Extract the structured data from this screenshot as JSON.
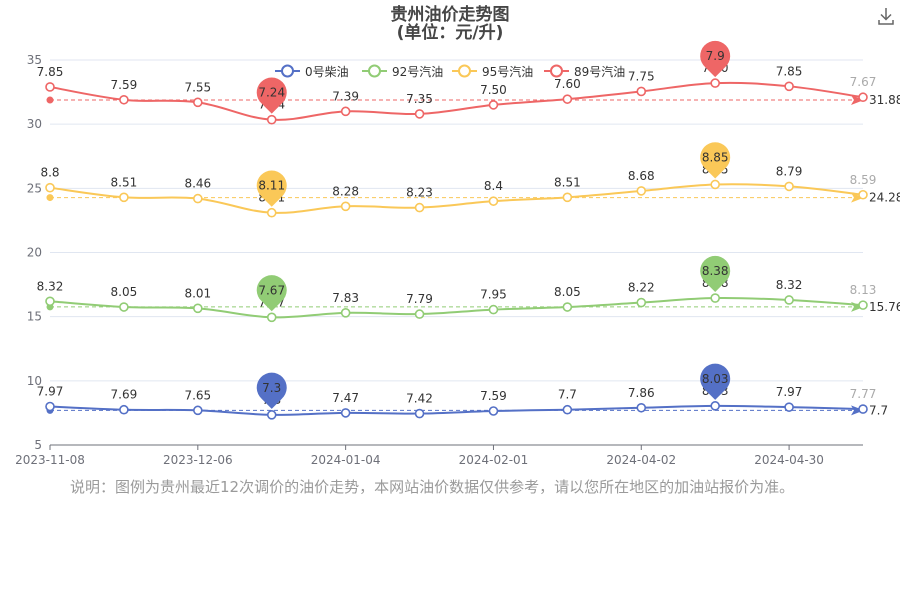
{
  "chart_data": {
    "type": "line",
    "title": "贵州油价走势图",
    "subtitle": "(单位：元/升)",
    "y_axis": {
      "min": 5,
      "max": 35,
      "ticks": [
        5,
        10,
        15,
        20,
        25,
        30,
        35
      ]
    },
    "x_tick_labels": [
      "2023-11-08",
      "2023-12-06",
      "2024-01-04",
      "2024-02-01",
      "2024-04-02",
      "2024-04-30"
    ],
    "legend": {
      "position": "top",
      "items": [
        "0号柴油",
        "92号汽油",
        "95号汽油",
        "89号汽油"
      ]
    },
    "series": [
      {
        "name": "0号柴油",
        "color": "#5470c6",
        "plot_values": [
          8.0,
          7.75,
          7.7,
          7.35,
          7.5,
          7.45,
          7.65,
          7.75,
          7.9,
          8.05,
          7.95,
          7.8
        ],
        "labels": [
          "7.97",
          "7.69",
          "7.65",
          "7.3",
          "7.47",
          "7.42",
          "7.59",
          "7.7",
          "7.86",
          "8.03",
          "7.97",
          "7.77"
        ],
        "min_pin": "7.3",
        "max_pin": "8.03",
        "avg_label": "7.7",
        "avg_value": 7.7
      },
      {
        "name": "92号汽油",
        "color": "#91cc75",
        "plot_values": [
          16.2,
          15.75,
          15.65,
          14.95,
          15.3,
          15.2,
          15.55,
          15.75,
          16.1,
          16.45,
          16.3,
          15.9
        ],
        "labels": [
          "8.32",
          "8.05",
          "8.01",
          "7.67",
          "7.83",
          "7.79",
          "7.95",
          "8.05",
          "8.22",
          "8.38",
          "8.32",
          "8.13"
        ],
        "min_pin": "7.67",
        "max_pin": "8.38",
        "avg_label": "15.76",
        "avg_value": 15.76
      },
      {
        "name": "95号汽油",
        "color": "#fac858",
        "plot_values": [
          25.05,
          24.3,
          24.2,
          23.1,
          23.6,
          23.5,
          24.0,
          24.3,
          24.8,
          25.3,
          25.15,
          24.5
        ],
        "labels": [
          "8.8",
          "8.51",
          "8.46",
          "8.11",
          "8.28",
          "8.23",
          "8.4",
          "8.51",
          "8.68",
          "8.85",
          "8.79",
          "8.59"
        ],
        "min_pin": "8.11",
        "max_pin": "8.85",
        "avg_label": "24.28",
        "avg_value": 24.28
      },
      {
        "name": "89号汽油",
        "color": "#ee6666",
        "plot_values": [
          32.9,
          31.9,
          31.7,
          30.35,
          31.0,
          30.8,
          31.5,
          31.95,
          32.55,
          33.2,
          32.95,
          32.1
        ],
        "labels": [
          "7.85",
          "7.59",
          "7.55",
          "7.24",
          "7.39",
          "7.35",
          "7.50",
          "7.60",
          "7.75",
          "7.90",
          "7.85",
          "7.67"
        ],
        "min_pin": "7.24",
        "max_pin": "7.9",
        "avg_label": "31.88",
        "avg_value": 31.88
      }
    ]
  },
  "footnote": "说明：图例为贵州最近12次调价的油价走势，本网站油价数据仅供参考，请以您所在地区的加油站报价为准。",
  "toolbar": {
    "download_icon": "download-icon"
  }
}
